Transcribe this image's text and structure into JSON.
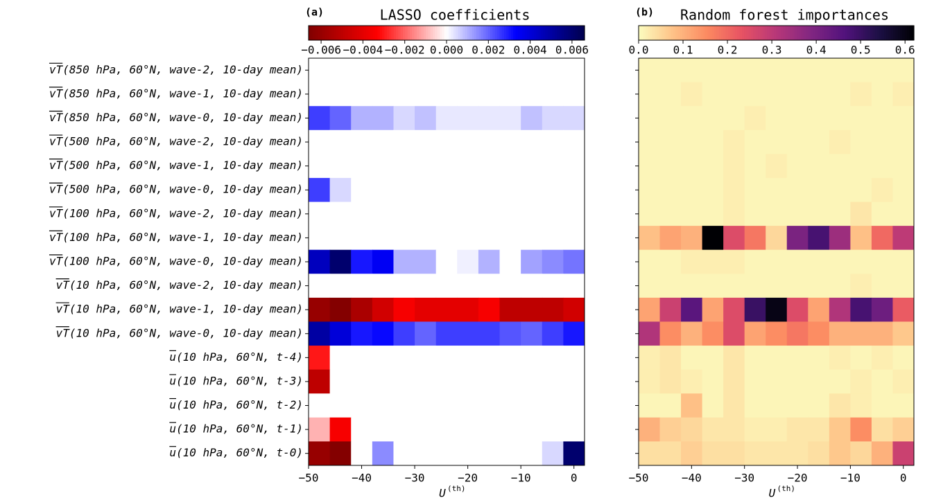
{
  "chart_data": [
    {
      "type": "heatmap",
      "panel_label": "(a)",
      "title": "LASSO coefficients",
      "xlabel": "U",
      "xlabel_sup": "(th)",
      "colormap": "seismic_r",
      "clim": [
        -0.0066,
        0.0066
      ],
      "cticks": [
        {
          "value": -0.006,
          "label": "−0.006"
        },
        {
          "value": -0.004,
          "label": "−0.004"
        },
        {
          "value": -0.002,
          "label": "−0.002"
        },
        {
          "value": 0,
          "label": "0.000"
        },
        {
          "value": 0.002,
          "label": "0.002"
        },
        {
          "value": 0.004,
          "label": "0.004"
        },
        {
          "value": 0.006,
          "label": "0.006"
        }
      ],
      "xlim": [
        -50,
        2
      ],
      "xticks": [
        {
          "value": -50,
          "label": "−50"
        },
        {
          "value": -40,
          "label": "−40"
        },
        {
          "value": -30,
          "label": "−30"
        },
        {
          "value": -20,
          "label": "−20"
        },
        {
          "value": -10,
          "label": "−10"
        },
        0
      ],
      "x": [
        -48,
        -44,
        -40,
        -36,
        -32,
        -28,
        -24,
        -20,
        -16,
        -12,
        -8,
        -4,
        0
      ],
      "categories": [
        "vT(850 hPa, 60°N, wave-2, 10-day mean)",
        "vT(850 hPa, 60°N, wave-1, 10-day mean)",
        "vT(850 hPa, 60°N, wave-0, 10-day mean)",
        "vT(500 hPa, 60°N, wave-2, 10-day mean)",
        "vT(500 hPa, 60°N, wave-1, 10-day mean)",
        "vT(500 hPa, 60°N, wave-0, 10-day mean)",
        "vT(100 hPa, 60°N, wave-2, 10-day mean)",
        "vT(100 hPa, 60°N, wave-1, 10-day mean)",
        "vT(100 hPa, 60°N, wave-0, 10-day mean)",
        "vT(10 hPa, 60°N, wave-2, 10-day mean)",
        "vT(10 hPa, 60°N, wave-1, 10-day mean)",
        "vT(10 hPa, 60°N, wave-0, 10-day mean)",
        "u(10 hPa, 60°N, t-4)",
        "u(10 hPa, 60°N, t-3)",
        "u(10 hPa, 60°N, t-2)",
        "u(10 hPa, 60°N, t-1)",
        "u(10 hPa, 60°N, t-0)"
      ],
      "z": [
        [
          0,
          0,
          0,
          0,
          0,
          0,
          0,
          0,
          0,
          0,
          0,
          0,
          0
        ],
        [
          0,
          0,
          0,
          0,
          0,
          0,
          0,
          0,
          0,
          0,
          0,
          0,
          0
        ],
        [
          0.0025,
          0.002,
          0.001,
          0.001,
          0.0005,
          0.0008,
          0.0003,
          0.0003,
          0.0003,
          0.0003,
          0.0008,
          0.0005,
          0.0005
        ],
        [
          0,
          0,
          0,
          0,
          0,
          0,
          0,
          0,
          0,
          0,
          0,
          0,
          0
        ],
        [
          0,
          0,
          0,
          0,
          0,
          0,
          0,
          0,
          0,
          0,
          0,
          0,
          0
        ],
        [
          0.0025,
          0.0005,
          0,
          0,
          0,
          0,
          0,
          0,
          0,
          0,
          0,
          0,
          0
        ],
        [
          0,
          0,
          0,
          0,
          0,
          0,
          0,
          0,
          0,
          0,
          0,
          0,
          0
        ],
        [
          0,
          0,
          0,
          0,
          0,
          0,
          0,
          0,
          0,
          0,
          0,
          0,
          0
        ],
        [
          0.0045,
          0.006,
          0.003,
          0.0035,
          0.001,
          0.001,
          0,
          0.0002,
          0.001,
          0,
          0.0012,
          0.0015,
          0.0018
        ],
        [
          0,
          0,
          0,
          0,
          0,
          0,
          0,
          0,
          0,
          0,
          0,
          0,
          0
        ],
        [
          -0.006,
          -0.0065,
          -0.0055,
          -0.0045,
          -0.0035,
          -0.004,
          -0.004,
          -0.004,
          -0.0035,
          -0.005,
          -0.005,
          -0.005,
          -0.0045
        ],
        [
          0.005,
          0.004,
          0.003,
          0.0032,
          0.0025,
          0.002,
          0.0025,
          0.0025,
          0.0025,
          0.0022,
          0.002,
          0.0025,
          0.003
        ],
        [
          -0.003,
          0,
          0,
          0,
          0,
          0,
          0,
          0,
          0,
          0,
          0,
          0,
          0
        ],
        [
          -0.005,
          0,
          0,
          0,
          0,
          0,
          0,
          0,
          0,
          0,
          0,
          0,
          0
        ],
        [
          0,
          0,
          0,
          0,
          0,
          0,
          0,
          0,
          0,
          0,
          0,
          0,
          0
        ],
        [
          -0.001,
          -0.0035,
          0,
          0,
          0,
          0,
          0,
          0,
          0,
          0,
          0,
          0,
          0
        ],
        [
          -0.006,
          -0.0065,
          0,
          0.0015,
          0,
          0,
          0,
          0,
          0,
          0,
          0,
          0.0005,
          0.006
        ]
      ]
    },
    {
      "type": "heatmap",
      "panel_label": "(b)",
      "title": "Random forest importances",
      "xlabel": "U",
      "xlabel_sup": "(th)",
      "colormap": "magma_r",
      "clim": [
        0,
        0.62
      ],
      "cticks": [
        {
          "value": 0,
          "label": "0.0"
        },
        0.1,
        0.2,
        0.3,
        0.4,
        0.5,
        0.6
      ],
      "xlim": [
        -50,
        2
      ],
      "xticks": [
        {
          "value": -50,
          "label": "−50"
        },
        {
          "value": -40,
          "label": "−40"
        },
        {
          "value": -30,
          "label": "−30"
        },
        {
          "value": -20,
          "label": "−20"
        },
        {
          "value": -10,
          "label": "−10"
        },
        0
      ],
      "x": [
        -48,
        -44,
        -40,
        -36,
        -32,
        -28,
        -24,
        -20,
        -16,
        -12,
        -8,
        -4,
        0
      ],
      "z": [
        [
          0.01,
          0.01,
          0.01,
          0.01,
          0.01,
          0.01,
          0.01,
          0.01,
          0.01,
          0.01,
          0.01,
          0.01,
          0.01
        ],
        [
          0.01,
          0.01,
          0.02,
          0.01,
          0.01,
          0.01,
          0.01,
          0.01,
          0.01,
          0.01,
          0.02,
          0.01,
          0.02
        ],
        [
          0.01,
          0.01,
          0.01,
          0.01,
          0.01,
          0.02,
          0.01,
          0.01,
          0.01,
          0.01,
          0.01,
          0.01,
          0.01
        ],
        [
          0.01,
          0.01,
          0.01,
          0.01,
          0.02,
          0.01,
          0.01,
          0.01,
          0.01,
          0.02,
          0.01,
          0.01,
          0.01
        ],
        [
          0.01,
          0.01,
          0.01,
          0.01,
          0.02,
          0.01,
          0.02,
          0.01,
          0.01,
          0.01,
          0.01,
          0.01,
          0.01
        ],
        [
          0.01,
          0.01,
          0.01,
          0.01,
          0.02,
          0.01,
          0.01,
          0.01,
          0.01,
          0.01,
          0.01,
          0.02,
          0.01
        ],
        [
          0.01,
          0.01,
          0.01,
          0.01,
          0.02,
          0.01,
          0.01,
          0.01,
          0.01,
          0.01,
          0.03,
          0.01,
          0.01
        ],
        [
          0.08,
          0.12,
          0.1,
          0.62,
          0.25,
          0.18,
          0.05,
          0.4,
          0.48,
          0.35,
          0.08,
          0.2,
          0.3
        ],
        [
          0.01,
          0.01,
          0.02,
          0.02,
          0.02,
          0.01,
          0.01,
          0.01,
          0.01,
          0.01,
          0.01,
          0.01,
          0.01
        ],
        [
          0.01,
          0.01,
          0.01,
          0.01,
          0.01,
          0.01,
          0.01,
          0.01,
          0.01,
          0.01,
          0.02,
          0.01,
          0.01
        ],
        [
          0.12,
          0.28,
          0.45,
          0.12,
          0.25,
          0.5,
          0.6,
          0.25,
          0.12,
          0.32,
          0.48,
          0.42,
          0.22
        ],
        [
          0.32,
          0.15,
          0.1,
          0.15,
          0.25,
          0.12,
          0.15,
          0.18,
          0.15,
          0.1,
          0.1,
          0.1,
          0.07
        ],
        [
          0.02,
          0.03,
          0.01,
          0.01,
          0.03,
          0.01,
          0.01,
          0.01,
          0.01,
          0.02,
          0.01,
          0.02,
          0.01
        ],
        [
          0.02,
          0.03,
          0.02,
          0.01,
          0.03,
          0.01,
          0.01,
          0.01,
          0.01,
          0.01,
          0.02,
          0.01,
          0.02
        ],
        [
          0.01,
          0.01,
          0.08,
          0.01,
          0.03,
          0.01,
          0.01,
          0.01,
          0.01,
          0.03,
          0.02,
          0.01,
          0.01
        ],
        [
          0.1,
          0.06,
          0.05,
          0.03,
          0.03,
          0.02,
          0.02,
          0.03,
          0.03,
          0.07,
          0.15,
          0.04,
          0.06
        ],
        [
          0.04,
          0.04,
          0.06,
          0.04,
          0.04,
          0.03,
          0.03,
          0.03,
          0.04,
          0.07,
          0.05,
          0.1,
          0.28
        ]
      ]
    }
  ]
}
